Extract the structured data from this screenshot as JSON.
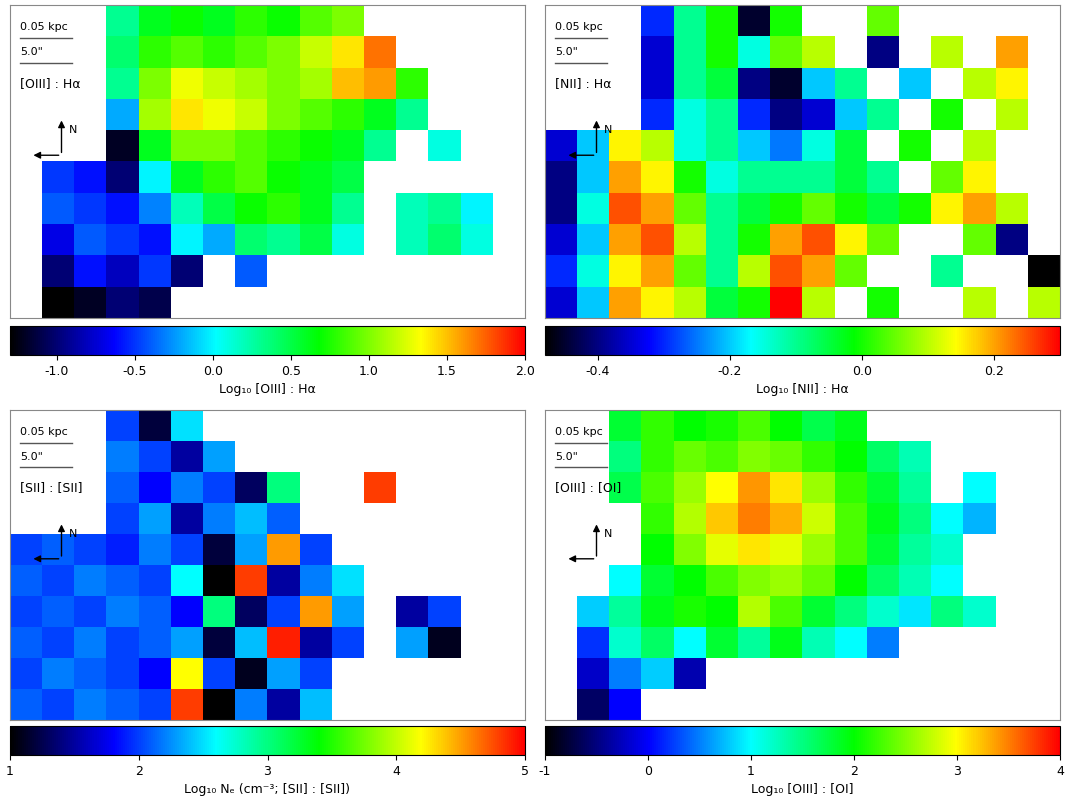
{
  "chart_data": [
    {
      "type": "heatmap",
      "title": "[OIII] : Hα",
      "annotations": [
        "0.05 kpc",
        "5.0\"",
        "N"
      ],
      "tick_labels": false,
      "colorbar": {
        "label": "Log₁₀ [OIII] : Hα",
        "range": [
          -1.3,
          2.0
        ],
        "ticks": [
          -1.0,
          -0.5,
          0.0,
          0.5,
          1.0,
          1.5,
          2.0
        ]
      },
      "cells": [
        [
          null,
          null,
          null,
          0.3,
          0.6,
          0.7,
          0.6,
          0.8,
          0.7,
          0.9,
          1.0,
          null,
          null,
          null,
          null,
          null
        ],
        [
          null,
          null,
          null,
          0.4,
          0.8,
          0.9,
          0.8,
          0.9,
          1.0,
          1.2,
          1.4,
          1.7,
          null,
          null,
          null,
          null
        ],
        [
          null,
          null,
          null,
          0.3,
          1.0,
          1.3,
          1.2,
          1.1,
          1.0,
          1.1,
          1.5,
          1.6,
          0.8,
          null,
          null,
          null
        ],
        [
          null,
          null,
          null,
          -0.2,
          1.1,
          1.4,
          1.3,
          1.2,
          1.0,
          0.9,
          0.8,
          0.6,
          0.3,
          null,
          null,
          null
        ],
        [
          null,
          null,
          null,
          -1.2,
          0.6,
          1.0,
          1.0,
          0.9,
          0.8,
          0.7,
          0.6,
          0.3,
          null,
          0.1,
          null,
          null
        ],
        [
          null,
          -0.5,
          -0.6,
          -1.0,
          0.0,
          0.6,
          0.8,
          0.9,
          0.7,
          0.6,
          0.5,
          null,
          null,
          null,
          null,
          null
        ],
        [
          null,
          -0.4,
          -0.5,
          -0.6,
          -0.3,
          0.2,
          0.5,
          0.7,
          0.8,
          0.6,
          0.3,
          null,
          0.2,
          0.3,
          0.0,
          null
        ],
        [
          null,
          -0.7,
          -0.4,
          -0.5,
          -0.6,
          0.0,
          -0.2,
          0.4,
          0.3,
          0.5,
          0.1,
          null,
          0.2,
          0.4,
          0.1,
          null
        ],
        [
          null,
          -1.0,
          -0.6,
          -0.8,
          -0.5,
          -1.0,
          null,
          -0.4,
          null,
          null,
          null,
          null,
          null,
          null,
          null,
          null
        ],
        [
          null,
          -1.3,
          -1.2,
          -1.0,
          -1.1,
          null,
          null,
          null,
          null,
          null,
          null,
          null,
          null,
          null,
          null,
          null
        ]
      ]
    },
    {
      "type": "heatmap",
      "title": "[NII] : Hα",
      "annotations": [
        "0.05 kpc",
        "5.0\"",
        "N"
      ],
      "tick_labels": false,
      "colorbar": {
        "label": "Log₁₀ [NII] : Hα",
        "range": [
          -0.48,
          0.3
        ],
        "ticks": [
          -0.4,
          -0.2,
          0.0,
          0.2
        ]
      },
      "cells": [
        [
          null,
          null,
          null,
          -0.3,
          -0.1,
          0.0,
          -0.45,
          0.0,
          null,
          null,
          0.05,
          null,
          null,
          null,
          null,
          null
        ],
        [
          null,
          null,
          null,
          -0.35,
          -0.1,
          0.0,
          -0.15,
          0.05,
          0.1,
          null,
          -0.4,
          null,
          0.1,
          null,
          0.2,
          null
        ],
        [
          null,
          null,
          null,
          -0.35,
          -0.1,
          -0.05,
          -0.4,
          -0.45,
          -0.2,
          -0.1,
          null,
          -0.2,
          null,
          0.1,
          0.15,
          null
        ],
        [
          null,
          null,
          null,
          -0.3,
          -0.15,
          -0.1,
          -0.3,
          -0.4,
          -0.35,
          -0.2,
          -0.1,
          null,
          0.0,
          null,
          0.1,
          null
        ],
        [
          -0.35,
          -0.2,
          0.15,
          0.1,
          -0.15,
          -0.1,
          -0.2,
          -0.25,
          -0.15,
          -0.05,
          null,
          0.0,
          null,
          0.1,
          null,
          null
        ],
        [
          -0.4,
          -0.2,
          0.2,
          0.15,
          0.0,
          -0.15,
          -0.1,
          -0.1,
          -0.1,
          -0.05,
          -0.1,
          null,
          0.05,
          0.15,
          null,
          null
        ],
        [
          -0.4,
          -0.15,
          0.25,
          0.2,
          0.05,
          -0.1,
          -0.05,
          0.0,
          0.05,
          0.0,
          -0.05,
          0.0,
          0.15,
          0.2,
          0.1,
          null
        ],
        [
          -0.35,
          -0.2,
          0.2,
          0.25,
          0.1,
          -0.1,
          0.0,
          0.2,
          0.25,
          0.15,
          0.05,
          null,
          null,
          0.05,
          -0.4,
          null
        ],
        [
          -0.3,
          -0.15,
          0.15,
          0.2,
          0.05,
          -0.1,
          0.1,
          0.25,
          0.2,
          0.05,
          null,
          null,
          -0.1,
          null,
          null,
          -0.48
        ],
        [
          -0.35,
          -0.2,
          0.2,
          0.15,
          0.1,
          -0.05,
          0.0,
          0.3,
          0.1,
          null,
          0.0,
          null,
          null,
          0.1,
          null,
          0.1
        ]
      ]
    },
    {
      "type": "heatmap",
      "title": "[SII] : [SII]",
      "annotations": [
        "0.05 kpc",
        "5.0\"",
        "N"
      ],
      "tick_labels": false,
      "colorbar": {
        "label": "Log₁₀ Nₑ (cm⁻³; [SII] : [SII])",
        "range": [
          1,
          5
        ],
        "ticks": [
          1,
          2,
          3,
          4,
          5
        ]
      },
      "cells": [
        [
          null,
          null,
          null,
          2.0,
          1.2,
          2.5,
          null,
          null,
          null,
          null,
          null,
          null,
          null,
          null,
          null,
          null
        ],
        [
          null,
          null,
          null,
          2.2,
          2.0,
          1.5,
          2.3,
          null,
          null,
          null,
          null,
          null,
          null,
          null,
          null,
          null
        ],
        [
          null,
          null,
          null,
          2.1,
          1.8,
          2.2,
          2.0,
          1.3,
          3.0,
          null,
          null,
          4.8,
          null,
          null,
          null,
          null
        ],
        [
          null,
          null,
          null,
          2.0,
          2.3,
          1.5,
          2.2,
          2.4,
          2.1,
          null,
          null,
          null,
          null,
          null,
          null,
          null
        ],
        [
          2.0,
          2.1,
          2.0,
          1.9,
          2.2,
          2.0,
          1.2,
          2.3,
          4.5,
          2.0,
          null,
          null,
          null,
          null,
          null,
          null
        ],
        [
          2.1,
          2.0,
          2.2,
          2.1,
          2.0,
          2.6,
          1.0,
          4.8,
          1.5,
          2.2,
          2.5,
          null,
          null,
          null,
          null,
          null
        ],
        [
          2.0,
          2.1,
          2.0,
          2.2,
          2.1,
          1.8,
          3.0,
          1.3,
          2.0,
          4.5,
          2.3,
          null,
          1.5,
          2.0,
          null,
          null
        ],
        [
          2.1,
          2.0,
          2.2,
          2.0,
          2.1,
          2.3,
          1.2,
          2.4,
          4.9,
          1.5,
          2.0,
          null,
          2.3,
          1.1,
          null,
          null
        ],
        [
          2.0,
          2.2,
          2.1,
          2.0,
          1.8,
          4.2,
          2.0,
          1.1,
          2.3,
          2.0,
          null,
          null,
          null,
          null,
          null,
          null
        ],
        [
          2.1,
          2.0,
          2.2,
          2.1,
          2.0,
          4.8,
          1.0,
          2.2,
          1.5,
          2.4,
          null,
          null,
          null,
          null,
          null,
          null
        ]
      ]
    },
    {
      "type": "heatmap",
      "title": "[OIII] : [OI]",
      "annotations": [
        "0.05 kpc",
        "5.0\"",
        "N"
      ],
      "tick_labels": false,
      "colorbar": {
        "label": "Log₁₀ [OIII] : [OI]",
        "range": [
          -1,
          4
        ],
        "ticks": [
          -1,
          0,
          1,
          2,
          3,
          4
        ]
      },
      "cells": [
        [
          null,
          null,
          1.8,
          2.2,
          2.0,
          2.1,
          2.3,
          2.0,
          1.7,
          1.9,
          null,
          null,
          null,
          null,
          null,
          null
        ],
        [
          null,
          null,
          1.5,
          2.2,
          2.4,
          2.3,
          2.5,
          2.4,
          2.2,
          2.0,
          1.6,
          1.3,
          null,
          null,
          null,
          null
        ],
        [
          null,
          null,
          1.7,
          2.3,
          2.6,
          3.0,
          3.4,
          3.1,
          2.6,
          2.2,
          1.8,
          1.4,
          null,
          1.0,
          null,
          null
        ],
        [
          null,
          null,
          null,
          2.2,
          2.7,
          3.2,
          3.5,
          3.3,
          2.8,
          2.3,
          1.9,
          1.5,
          1.0,
          0.7,
          null,
          null
        ],
        [
          null,
          null,
          null,
          2.0,
          2.5,
          2.9,
          3.1,
          2.9,
          2.6,
          2.3,
          1.8,
          1.4,
          1.2,
          null,
          null,
          null
        ],
        [
          null,
          null,
          1.0,
          1.8,
          2.0,
          2.3,
          2.5,
          2.6,
          2.4,
          2.0,
          1.6,
          1.3,
          1.0,
          null,
          null,
          null
        ],
        [
          null,
          0.8,
          1.4,
          1.9,
          2.1,
          2.0,
          2.7,
          2.3,
          1.8,
          1.5,
          1.2,
          0.9,
          1.5,
          1.2,
          null,
          null
        ],
        [
          null,
          0.2,
          1.2,
          1.6,
          1.0,
          1.8,
          1.4,
          1.9,
          1.3,
          1.0,
          0.5,
          null,
          null,
          null,
          null,
          null
        ],
        [
          null,
          -0.2,
          0.5,
          0.8,
          -0.3,
          null,
          null,
          null,
          null,
          null,
          null,
          null,
          null,
          null,
          null,
          null
        ],
        [
          null,
          -0.6,
          0.0,
          null,
          null,
          null,
          null,
          null,
          null,
          null,
          null,
          null,
          null,
          null,
          null,
          null
        ]
      ]
    }
  ]
}
